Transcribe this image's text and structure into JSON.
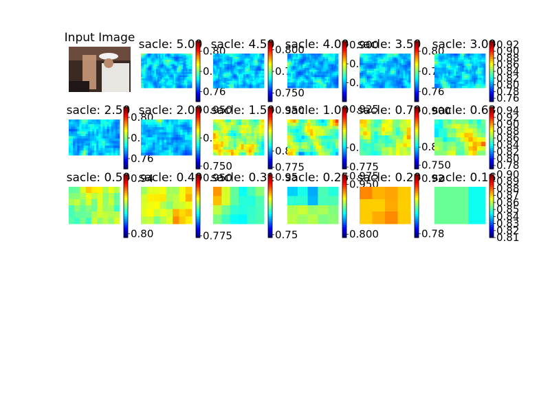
{
  "figure": {
    "input_title": "Input Image"
  },
  "chart_data": [
    {
      "type": "heatmap",
      "title": "sacle: 5.00",
      "colorbar_ticks": [
        "0.80",
        "0.78",
        "0.76"
      ],
      "range": [
        0.75,
        0.81
      ],
      "seed": 5,
      "grid": [
        34,
        22
      ]
    },
    {
      "type": "heatmap",
      "title": "sacle: 4.50",
      "colorbar_ticks": [
        "0.800",
        "0.775",
        "0.750"
      ],
      "range": [
        0.74,
        0.81
      ],
      "seed": 11,
      "grid": [
        32,
        20
      ]
    },
    {
      "type": "heatmap",
      "title": "sacle: 4.00",
      "colorbar_ticks": [
        "0.900",
        "0.85",
        "0.80"
      ],
      "range": [
        0.75,
        0.91
      ],
      "seed": 17,
      "grid": [
        30,
        19
      ]
    },
    {
      "type": "heatmap",
      "title": "sacle: 3.50",
      "colorbar_ticks": [
        "0.80",
        "0.78",
        "0.76"
      ],
      "range": [
        0.75,
        0.81
      ],
      "seed": 23,
      "grid": [
        28,
        18
      ]
    },
    {
      "type": "heatmap",
      "title": "sacle: 3.00",
      "colorbar_ticks": [
        "0.92",
        "0.90",
        "0.88",
        "0.86",
        "0.84",
        "0.82",
        "0.80",
        "0.78",
        "0.76"
      ],
      "range": [
        0.75,
        0.93
      ],
      "seed": 29,
      "grid": [
        26,
        17
      ]
    },
    {
      "type": "heatmap",
      "title": "sacle: 2.50",
      "colorbar_ticks": [
        "0.80",
        "0.78",
        "0.76"
      ],
      "range": [
        0.75,
        0.81
      ],
      "seed": 31,
      "grid": [
        24,
        15
      ]
    },
    {
      "type": "heatmap",
      "title": "sacle: 2.00",
      "colorbar_ticks": [
        "0.950",
        "0.850",
        "0.750"
      ],
      "range": [
        0.74,
        0.96
      ],
      "seed": 37,
      "grid": [
        22,
        14
      ]
    },
    {
      "type": "heatmap",
      "title": "sacle: 1.50",
      "colorbar_ticks": [
        "0.950",
        "0.825",
        "0.775"
      ],
      "range": [
        0.77,
        0.96
      ],
      "seed": 41,
      "grid": [
        20,
        13
      ]
    },
    {
      "type": "heatmap",
      "title": "sacle: 1.00",
      "colorbar_ticks": [
        "0.925",
        "0.825",
        "0.775"
      ],
      "range": [
        0.77,
        0.93
      ],
      "seed": 43,
      "grid": [
        18,
        11
      ]
    },
    {
      "type": "heatmap",
      "title": "sacle: 0.79",
      "colorbar_ticks": [
        "0.900",
        "0.800",
        "0.750"
      ],
      "range": [
        0.74,
        0.91
      ],
      "seed": 47,
      "grid": [
        14,
        9
      ]
    },
    {
      "type": "heatmap",
      "title": "sacle: 0.63",
      "colorbar_ticks": [
        "0.94",
        "0.92",
        "0.90",
        "0.88",
        "0.86",
        "0.84",
        "0.82",
        "0.80",
        "0.78"
      ],
      "range": [
        0.77,
        0.95
      ],
      "seed": 53,
      "grid": [
        12,
        8
      ]
    },
    {
      "type": "heatmap",
      "title": "sacle: 0.50",
      "colorbar_ticks": [
        "0.94",
        "0.80"
      ],
      "range": [
        0.79,
        0.95
      ],
      "seed": 59,
      "grid": [
        9,
        6
      ]
    },
    {
      "type": "heatmap",
      "title": "sacle: 0.40",
      "colorbar_ticks": [
        "0.950",
        "0.775"
      ],
      "range": [
        0.77,
        0.96
      ],
      "seed": 61,
      "grid": [
        8,
        5
      ]
    },
    {
      "type": "heatmap",
      "title": "sacle: 0.31",
      "colorbar_ticks": [
        "0.95",
        "0.75"
      ],
      "range": [
        0.74,
        0.96
      ],
      "seed": 67,
      "grid": [
        6,
        4
      ]
    },
    {
      "type": "heatmap",
      "title": "sacle: 0.25",
      "colorbar_ticks": [
        "0.975",
        "0.950",
        "0.800"
      ],
      "range": [
        0.79,
        0.98
      ],
      "seed": 71,
      "grid": [
        5,
        4
      ]
    },
    {
      "type": "heatmap",
      "title": "sacle: 0.20",
      "colorbar_ticks": [
        "0.92",
        "0.78"
      ],
      "range": [
        0.77,
        0.93
      ],
      "seed": 73,
      "grid": [
        4,
        3
      ]
    },
    {
      "type": "heatmap",
      "title": "sacle: 0.16",
      "colorbar_ticks": [
        "0.90",
        "0.89",
        "0.88",
        "0.87",
        "0.86",
        "0.85",
        "0.84",
        "0.83",
        "0.82",
        "0.81"
      ],
      "range": [
        0.81,
        0.9
      ],
      "seed": 79,
      "grid": [
        3,
        2
      ]
    }
  ]
}
